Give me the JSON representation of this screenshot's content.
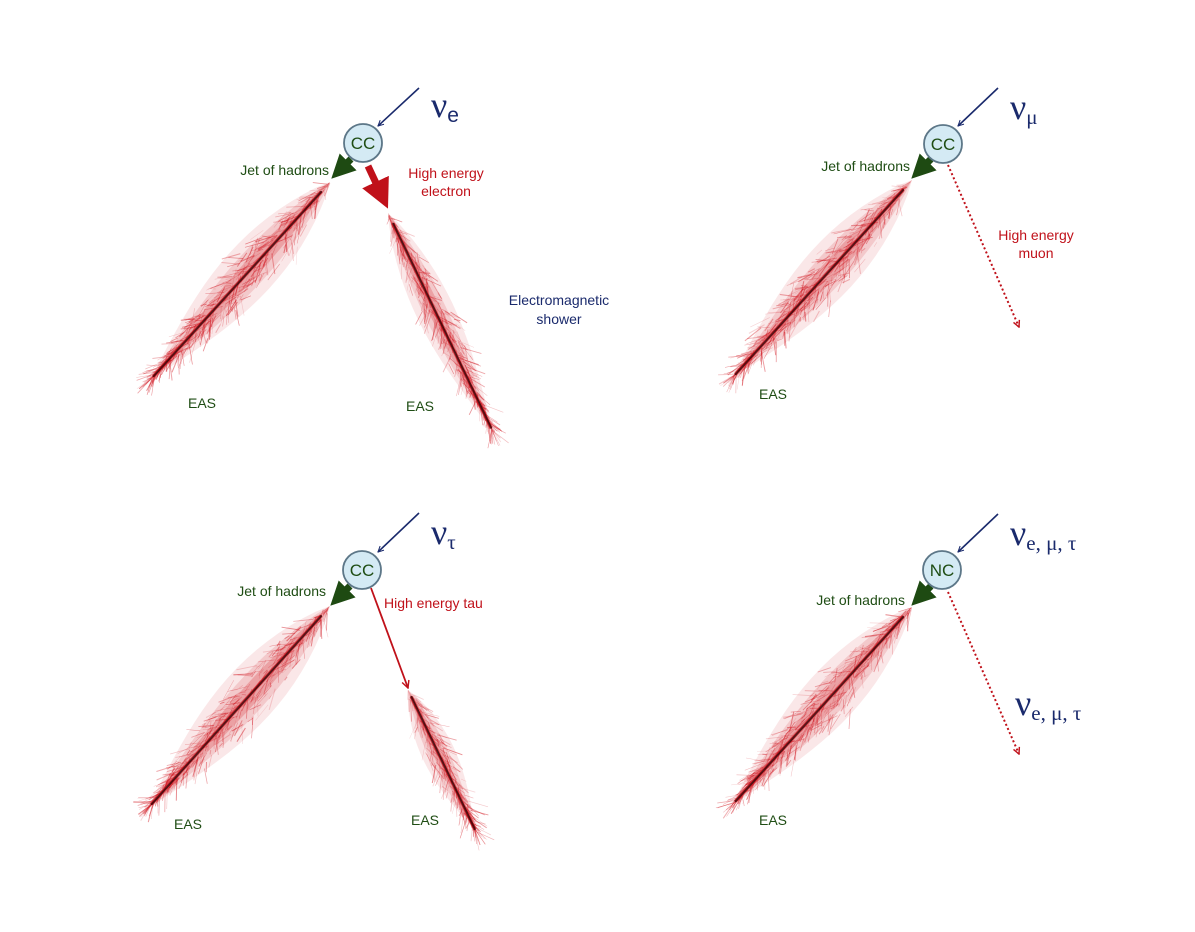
{
  "colors": {
    "neutrino": "#1a2a6c",
    "hadron_label": "#1f4d14",
    "hadron_arrow": "#1e4a12",
    "lepton": "#c0111a",
    "shower": "#d0121c",
    "shower_core": "#3a0004",
    "vertex_fill": "#d4eaf4",
    "vertex_stroke": "#5d7788",
    "em_label": "#1a2a6c"
  },
  "panels": [
    {
      "id": "nu-e-cc",
      "neutrino": {
        "base": "ν",
        "sub": "e"
      },
      "vertex": "CC",
      "jet_label": "Jet of hadrons",
      "lepton_label": [
        "High energy",
        "electron"
      ],
      "lepton_style": "thick",
      "em_label": [
        "Electromagnetic",
        "shower"
      ],
      "eas_labels": [
        "EAS",
        "EAS"
      ]
    },
    {
      "id": "nu-mu-cc",
      "neutrino": {
        "base": "ν",
        "sub": "μ"
      },
      "vertex": "CC",
      "jet_label": "Jet of hadrons",
      "lepton_label": [
        "High energy",
        "muon"
      ],
      "lepton_style": "dotted",
      "eas_labels": [
        "EAS"
      ]
    },
    {
      "id": "nu-tau-cc",
      "neutrino": {
        "base": "ν",
        "sub": "τ"
      },
      "vertex": "CC",
      "jet_label": "Jet of hadrons",
      "lepton_label": [
        "High energy tau"
      ],
      "lepton_style": "thin",
      "eas_labels": [
        "EAS",
        "EAS"
      ]
    },
    {
      "id": "nu-all-nc",
      "neutrino": {
        "base": "ν",
        "sub": "e, μ, τ"
      },
      "vertex": "NC",
      "jet_label": "Jet of hadrons",
      "outgoing_neutrino": {
        "base": "ν",
        "sub": "e, μ, τ"
      },
      "lepton_style": "dotted",
      "eas_labels": [
        "EAS"
      ]
    }
  ]
}
